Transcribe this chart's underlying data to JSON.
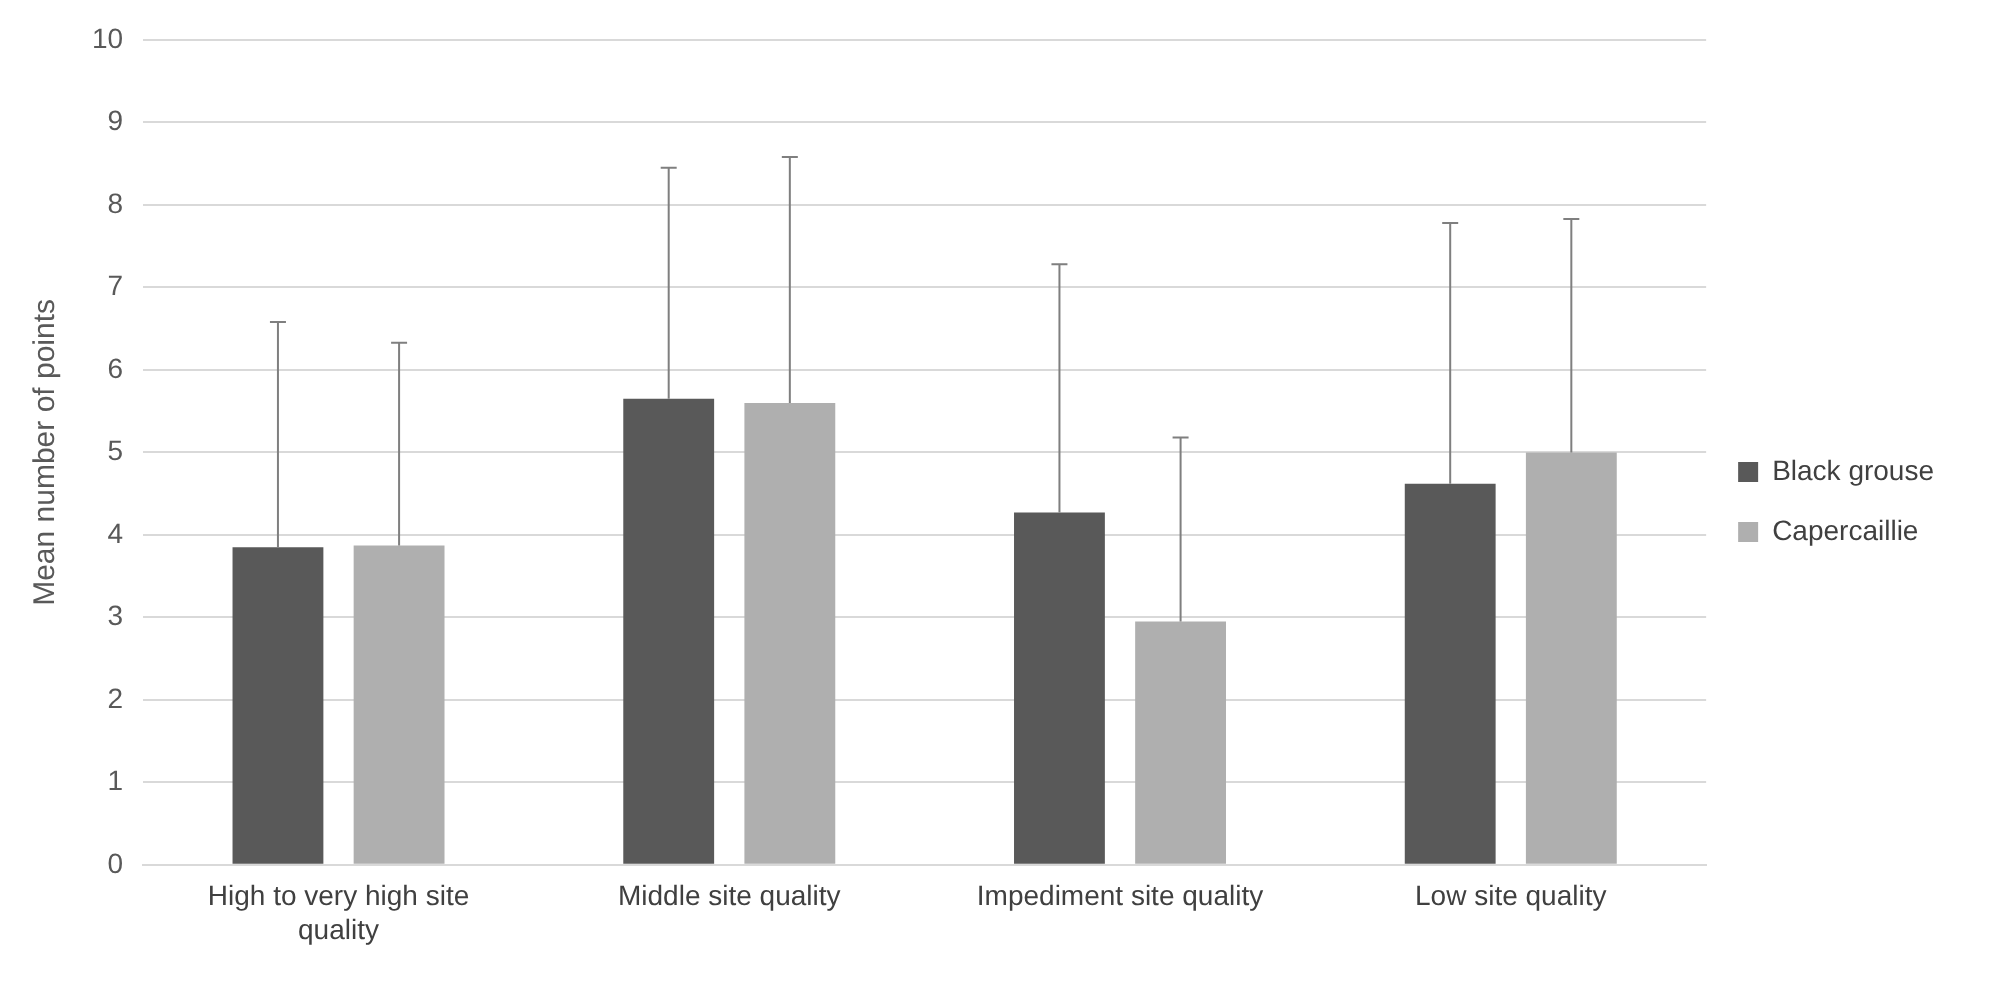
{
  "chart_data": {
    "type": "bar",
    "ylabel": "Mean number of points",
    "categories": [
      "High to very high site quality",
      "Middle site quality",
      "Impediment site quality",
      "Low site quality"
    ],
    "series": [
      {
        "name": "Black grouse",
        "color": "#595959",
        "values": [
          3.85,
          5.65,
          4.27,
          4.62
        ],
        "errors": [
          [
            3.85,
            6.58
          ],
          [
            5.65,
            8.45
          ],
          [
            4.27,
            7.28
          ],
          [
            4.62,
            7.78
          ]
        ]
      },
      {
        "name": "Capercaillie",
        "color": "#afafaf",
        "values": [
          3.87,
          5.6,
          2.95,
          5.0
        ],
        "errors": [
          [
            3.87,
            6.33
          ],
          [
            5.6,
            8.58
          ],
          [
            2.95,
            5.18
          ],
          [
            5.0,
            7.83
          ]
        ]
      }
    ],
    "ylim": [
      0,
      10
    ],
    "yticks": [
      0,
      1,
      2,
      3,
      4,
      5,
      6,
      7,
      8,
      9,
      10
    ],
    "grid": "y",
    "legend": "right"
  }
}
